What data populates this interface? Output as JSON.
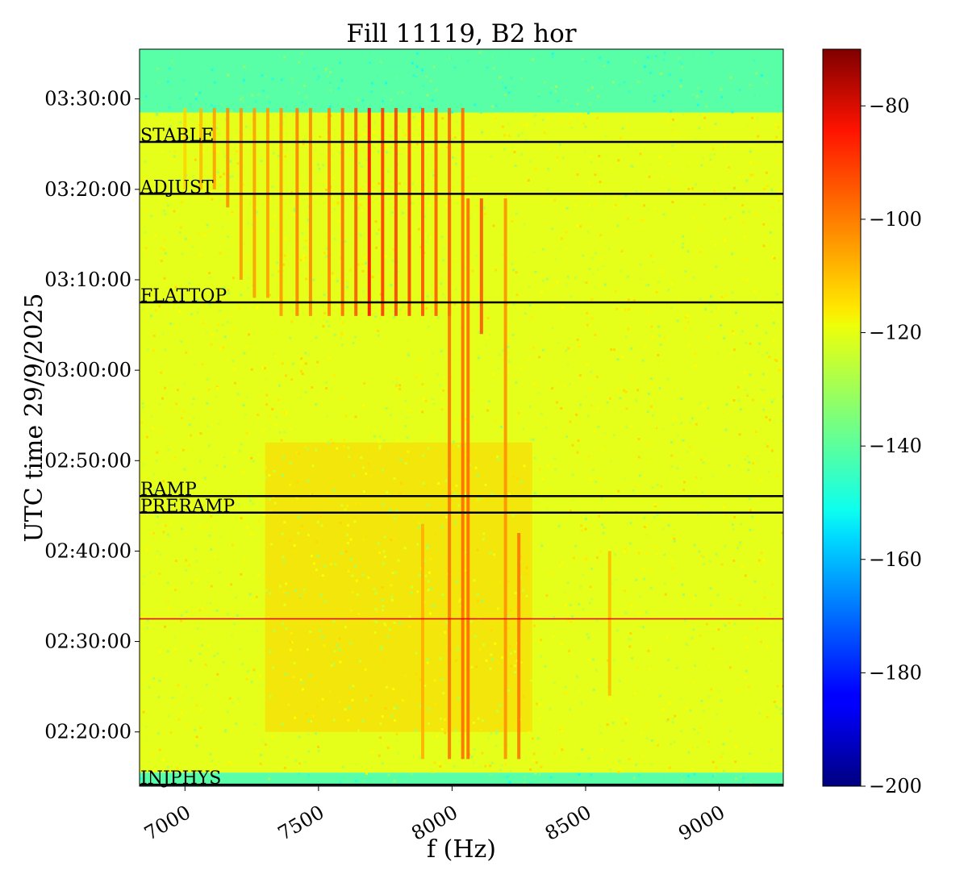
{
  "chart_data": {
    "type": "heatmap",
    "title": "Fill 11119, B2 hor",
    "xlabel": "f (Hz)",
    "ylabel": "UTC time 29/9/2025",
    "xlim": [
      6830,
      9240
    ],
    "ylim_minutes": [
      134.0,
      215.5
    ],
    "x_ticks": [
      {
        "value": 7000,
        "label": "7000"
      },
      {
        "value": 7500,
        "label": "7500"
      },
      {
        "value": 8000,
        "label": "8000"
      },
      {
        "value": 8500,
        "label": "8500"
      },
      {
        "value": 9000,
        "label": "9000"
      }
    ],
    "y_ticks": [
      {
        "value": 140,
        "label": "02:20:00"
      },
      {
        "value": 150,
        "label": "02:30:00"
      },
      {
        "value": 160,
        "label": "02:40:00"
      },
      {
        "value": 170,
        "label": "02:50:00"
      },
      {
        "value": 180,
        "label": "03:00:00"
      },
      {
        "value": 190,
        "label": "03:10:00"
      },
      {
        "value": 200,
        "label": "03:20:00"
      },
      {
        "value": 210,
        "label": "03:30:00"
      }
    ],
    "phases": [
      {
        "name": "STABLE",
        "time": "03:25:15",
        "value": 205.25
      },
      {
        "name": "ADJUST",
        "time": "03:19:30",
        "value": 199.5
      },
      {
        "name": "FLATTOP",
        "time": "03:07:30",
        "value": 187.5
      },
      {
        "name": "RAMP",
        "time": "02:46:05",
        "value": 166.08
      },
      {
        "name": "PRERAMP",
        "time": "02:44:15",
        "value": 164.25
      },
      {
        "name": "INJPHYS",
        "time": "02:14:10",
        "value": 134.17
      }
    ],
    "colorbar": {
      "colormap": "jet",
      "range": [
        -200,
        -70
      ],
      "ticks": [
        -80,
        -100,
        -120,
        -140,
        -160,
        -180,
        -200
      ],
      "tick_labels": [
        "−80",
        "−100",
        "−120",
        "−140",
        "−160",
        "−180",
        "−200"
      ]
    },
    "background_levels": {
      "no_beam_dB": -140,
      "beam_dB": -122,
      "ramp_region_dB": -113
    },
    "spectral_lines": [
      {
        "f": 7000,
        "t_start": 200.0,
        "t_end": 209.0,
        "level_dB": -113
      },
      {
        "f": 7060,
        "t_start": 200.0,
        "t_end": 209.0,
        "level_dB": -110
      },
      {
        "f": 7110,
        "t_start": 200.0,
        "t_end": 209.0,
        "level_dB": -106
      },
      {
        "f": 7160,
        "t_start": 198.0,
        "t_end": 209.0,
        "level_dB": -104
      },
      {
        "f": 7210,
        "t_start": 190.0,
        "t_end": 209.0,
        "level_dB": -105
      },
      {
        "f": 7260,
        "t_start": 188.0,
        "t_end": 209.0,
        "level_dB": -106
      },
      {
        "f": 7310,
        "t_start": 188.0,
        "t_end": 209.0,
        "level_dB": -106
      },
      {
        "f": 7360,
        "t_start": 186.0,
        "t_end": 209.0,
        "level_dB": -105
      },
      {
        "f": 7420,
        "t_start": 186.0,
        "t_end": 209.0,
        "level_dB": -102
      },
      {
        "f": 7470,
        "t_start": 186.0,
        "t_end": 209.0,
        "level_dB": -103
      },
      {
        "f": 7540,
        "t_start": 186.0,
        "t_end": 209.0,
        "level_dB": -102
      },
      {
        "f": 7590,
        "t_start": 186.0,
        "t_end": 209.0,
        "level_dB": -99
      },
      {
        "f": 7640,
        "t_start": 186.0,
        "t_end": 209.0,
        "level_dB": -96
      },
      {
        "f": 7690,
        "t_start": 186.0,
        "t_end": 209.0,
        "level_dB": -86
      },
      {
        "f": 7740,
        "t_start": 186.0,
        "t_end": 209.0,
        "level_dB": -92
      },
      {
        "f": 7790,
        "t_start": 186.0,
        "t_end": 209.0,
        "level_dB": -93
      },
      {
        "f": 7840,
        "t_start": 186.0,
        "t_end": 209.0,
        "level_dB": -93
      },
      {
        "f": 7890,
        "t_start": 186.0,
        "t_end": 209.0,
        "level_dB": -95
      },
      {
        "f": 7940,
        "t_start": 186.0,
        "t_end": 209.0,
        "level_dB": -97
      },
      {
        "f": 7990,
        "t_start": 186.0,
        "t_end": 209.0,
        "level_dB": -98
      },
      {
        "f": 8040,
        "t_start": 137.0,
        "t_end": 209.0,
        "level_dB": -99
      },
      {
        "f": 7990,
        "t_start": 137.0,
        "t_end": 199.0,
        "level_dB": -100
      },
      {
        "f": 8060,
        "t_start": 137.0,
        "t_end": 199.0,
        "level_dB": -99
      },
      {
        "f": 8110,
        "t_start": 184.0,
        "t_end": 199.0,
        "level_dB": -96
      },
      {
        "f": 8200,
        "t_start": 137.0,
        "t_end": 199.0,
        "level_dB": -104
      },
      {
        "f": 8250,
        "t_start": 137.0,
        "t_end": 162.0,
        "level_dB": -100
      },
      {
        "f": 7890,
        "t_start": 137.0,
        "t_end": 163.0,
        "level_dB": -108
      },
      {
        "f": 8590,
        "t_start": 144.0,
        "t_end": 160.0,
        "level_dB": -110
      }
    ],
    "horizontal_disturbance": {
      "time": "02:32:30",
      "value": 152.5,
      "level_dB": -85
    }
  }
}
